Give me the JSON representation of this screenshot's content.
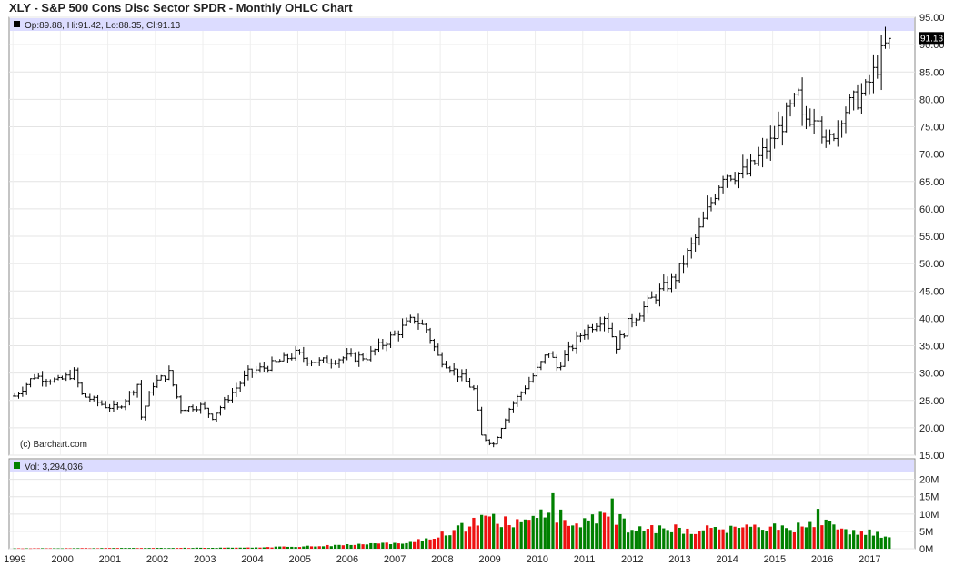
{
  "title": "XLY - S&P 500 Cons Disc Sector SPDR - Monthly OHLC Chart",
  "price_panel": {
    "legend_text": "Op:89.88, Hi:91.42, Lo:88.35, Cl:91.13",
    "last_price_label": "91.13",
    "watermark": "(c) Barchart.com",
    "colors": {
      "header_bg": "#dcdcff",
      "bar": "#000000",
      "grid": "#dddddd",
      "last_price_bg": "#000000"
    }
  },
  "volume_panel": {
    "legend_text": "Vol: 3,294,036",
    "colors": {
      "up": "#008000",
      "down": "#ee1111"
    }
  },
  "chart_data": [
    {
      "type": "ohlc",
      "ylim": [
        15,
        95
      ],
      "y_ticks": [
        15,
        20,
        25,
        30,
        35,
        40,
        45,
        50,
        55,
        60,
        65,
        70,
        75,
        80,
        85,
        90,
        95
      ],
      "y_tick_labels": [
        "15.00",
        "20.00",
        "25.00",
        "30.00",
        "35.00",
        "40.00",
        "45.00",
        "50.00",
        "55.00",
        "60.00",
        "65.00",
        "70.00",
        "75.00",
        "80.00",
        "85.00",
        "90.00",
        "95.00"
      ],
      "last": 91.13,
      "monthly_close_anchors": [
        [
          "1999-01",
          25.8
        ],
        [
          "1999-06",
          29.5
        ],
        [
          "1999-12",
          28.5
        ],
        [
          "2000-04",
          30.0
        ],
        [
          "2000-06",
          26.0
        ],
        [
          "2000-12",
          24.0
        ],
        [
          "2001-03",
          23.5
        ],
        [
          "2001-08",
          28.0
        ],
        [
          "2001-09",
          22.0
        ],
        [
          "2001-12",
          28.0
        ],
        [
          "2002-04",
          30.0
        ],
        [
          "2002-07",
          23.5
        ],
        [
          "2002-12",
          24.0
        ],
        [
          "2003-03",
          22.0
        ],
        [
          "2003-12",
          30.0
        ],
        [
          "2004-06",
          31.5
        ],
        [
          "2004-12",
          33.5
        ],
        [
          "2005-03",
          32.5
        ],
        [
          "2005-06",
          32.0
        ],
        [
          "2005-12",
          32.8
        ],
        [
          "2006-06",
          33.0
        ],
        [
          "2006-12",
          36.5
        ],
        [
          "2007-06",
          40.0
        ],
        [
          "2007-09",
          38.0
        ],
        [
          "2007-12",
          33.0
        ],
        [
          "2008-04",
          30.5
        ],
        [
          "2008-09",
          27.0
        ],
        [
          "2008-11",
          18.5
        ],
        [
          "2009-02",
          17.0
        ],
        [
          "2009-06",
          23.5
        ],
        [
          "2009-12",
          29.5
        ],
        [
          "2010-04",
          34.0
        ],
        [
          "2010-06",
          31.0
        ],
        [
          "2010-12",
          37.0
        ],
        [
          "2011-06",
          40.5
        ],
        [
          "2011-09",
          35.0
        ],
        [
          "2011-12",
          39.0
        ],
        [
          "2012-06",
          43.5
        ],
        [
          "2012-12",
          47.5
        ],
        [
          "2013-06",
          56.0
        ],
        [
          "2013-12",
          66.5
        ],
        [
          "2014-06",
          66.5
        ],
        [
          "2014-12",
          72.0
        ],
        [
          "2015-07",
          80.5
        ],
        [
          "2015-08",
          76.0
        ],
        [
          "2015-12",
          78.0
        ],
        [
          "2016-02",
          71.0
        ],
        [
          "2016-06",
          77.5
        ],
        [
          "2016-12",
          81.5
        ],
        [
          "2017-06",
          91.13
        ]
      ]
    },
    {
      "type": "bar",
      "ylim": [
        0,
        22000000
      ],
      "y_ticks": [
        0,
        5000000,
        10000000,
        15000000,
        20000000
      ],
      "y_tick_labels": [
        "0M",
        "5M",
        "10M",
        "15M",
        "20M"
      ],
      "x_tick_labels": [
        "1999",
        "2000",
        "2001",
        "2002",
        "2003",
        "2004",
        "2005",
        "2006",
        "2007",
        "2008",
        "2009",
        "2010",
        "2011",
        "2012",
        "2013",
        "2014",
        "2015",
        "2016",
        "2017"
      ],
      "last_volume": 3294036,
      "volume_anchors_millions": [
        [
          "1999-01",
          0.1
        ],
        [
          "2003-12",
          0.3
        ],
        [
          "2005-06",
          0.8
        ],
        [
          "2006-06",
          1.3
        ],
        [
          "2007-06",
          2.0
        ],
        [
          "2008-01",
          4.0
        ],
        [
          "2008-06",
          6.0
        ],
        [
          "2008-12",
          8.5
        ],
        [
          "2009-06",
          7.5
        ],
        [
          "2010-05",
          10.0
        ],
        [
          "2010-12",
          7.0
        ],
        [
          "2011-08",
          10.0
        ],
        [
          "2011-12",
          6.0
        ],
        [
          "2012-06",
          6.0
        ],
        [
          "2013-06",
          5.5
        ],
        [
          "2014-06",
          5.8
        ],
        [
          "2015-06",
          6.0
        ],
        [
          "2015-12",
          8.0
        ],
        [
          "2016-06",
          5.5
        ],
        [
          "2017-06",
          3.8
        ]
      ],
      "volume_spikes_millions": [
        [
          "2010-05",
          16.0
        ],
        [
          "2011-08",
          14.5
        ],
        [
          "2015-12",
          11.5
        ]
      ]
    }
  ]
}
